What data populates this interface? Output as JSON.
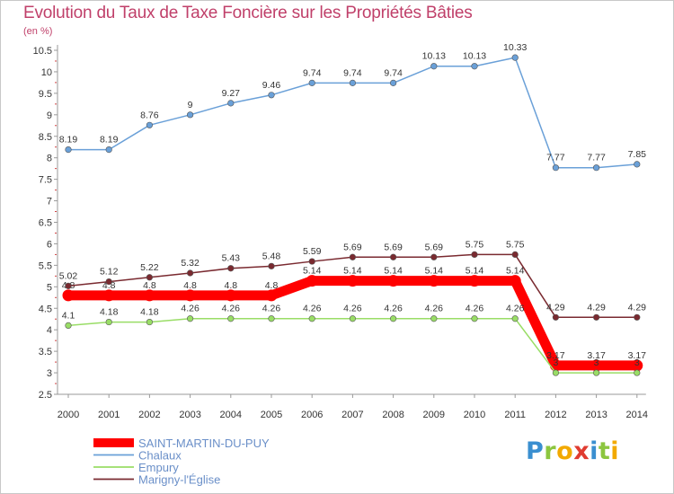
{
  "chart_data": {
    "type": "line",
    "title": "Evolution du Taux de Taxe Foncière sur les Propriétés Bâties",
    "subtitle": "(en %)",
    "xlabel": "",
    "ylabel": "",
    "ylim": [
      2.5,
      10.5
    ],
    "yticks": [
      "2.5",
      "3",
      "3.5",
      "4",
      "4.5",
      "5",
      "5.5",
      "6",
      "6.5",
      "7",
      "7.5",
      "8",
      "8.5",
      "9",
      "9.5",
      "10",
      "10.5"
    ],
    "categories": [
      "2000",
      "2001",
      "2002",
      "2003",
      "2004",
      "2005",
      "2006",
      "2007",
      "2008",
      "2009",
      "2010",
      "2011",
      "2012",
      "2013",
      "2014"
    ],
    "series": [
      {
        "name": "SAINT-MARTIN-DU-PUY",
        "color": "#ff0000",
        "values": [
          4.8,
          4.8,
          4.8,
          4.8,
          4.8,
          4.8,
          5.14,
          5.14,
          5.14,
          5.14,
          5.14,
          5.14,
          3.17,
          3.17,
          3.17
        ],
        "labels": [
          "4.8",
          "4.8",
          "4.8",
          "4.8",
          "4.8",
          "4.8",
          "5.14",
          "5.14",
          "5.14",
          "5.14",
          "5.14",
          "5.14",
          "3.17",
          "3.17",
          "3.17"
        ]
      },
      {
        "name": "Chalaux",
        "color": "#6aa0d8",
        "values": [
          8.19,
          8.19,
          8.76,
          9,
          9.27,
          9.46,
          9.74,
          9.74,
          9.74,
          10.13,
          10.13,
          10.33,
          7.77,
          7.77,
          7.85
        ],
        "labels": [
          "8.19",
          "8.19",
          "8.76",
          "9",
          "9.27",
          "9.46",
          "9.74",
          "9.74",
          "9.74",
          "10.13",
          "10.13",
          "10.33",
          "7.77",
          "7.77",
          "7.85"
        ]
      },
      {
        "name": "Empury",
        "color": "#99dd66",
        "values": [
          4.1,
          4.18,
          4.18,
          4.26,
          4.26,
          4.26,
          4.26,
          4.26,
          4.26,
          4.26,
          4.26,
          4.26,
          3,
          3,
          3
        ],
        "labels": [
          "4.1",
          "4.18",
          "4.18",
          "4.26",
          "4.26",
          "4.26",
          "4.26",
          "4.26",
          "4.26",
          "4.26",
          "4.26",
          "4.26",
          "3",
          "3",
          "3"
        ]
      },
      {
        "name": "Marigny-l'Église",
        "color": "#7a2a30",
        "values": [
          5.02,
          5.12,
          5.22,
          5.32,
          5.43,
          5.48,
          5.59,
          5.69,
          5.69,
          5.69,
          5.75,
          5.75,
          4.29,
          4.29,
          4.29
        ],
        "labels": [
          "5.02",
          "5.12",
          "5.22",
          "5.32",
          "5.43",
          "5.48",
          "5.59",
          "5.69",
          "5.69",
          "5.69",
          "5.75",
          "5.75",
          "4.29",
          "4.29",
          "4.29"
        ]
      }
    ],
    "legend": "bottom-left",
    "grid": false
  },
  "branding": {
    "logo_text": "Proxiti"
  }
}
